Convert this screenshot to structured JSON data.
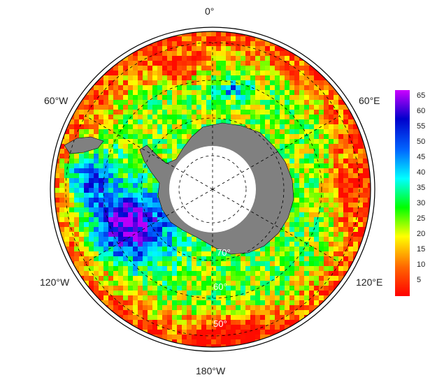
{
  "map": {
    "projection": "south-polar-stereographic",
    "longitude_labels": {
      "top": "0°",
      "upper_left": "60°W",
      "upper_right": "60°E",
      "lower_left": "120°W",
      "lower_right": "120°E",
      "bottom": "180°W"
    },
    "latitude_labels": [
      "70°",
      "60°",
      "50°"
    ],
    "land_color": "#808080",
    "ice_hole_color": "#ffffff"
  },
  "colorbar": {
    "ticks": [
      "65",
      "60",
      "55",
      "50",
      "45",
      "40",
      "35",
      "30",
      "25",
      "20",
      "15",
      "10",
      "5"
    ],
    "min": 0,
    "max": 67,
    "colors": [
      "#ff0000",
      "#ff6600",
      "#ffff00",
      "#00ff00",
      "#00ffff",
      "#0066ff",
      "#0000cc",
      "#cc00ff"
    ]
  }
}
